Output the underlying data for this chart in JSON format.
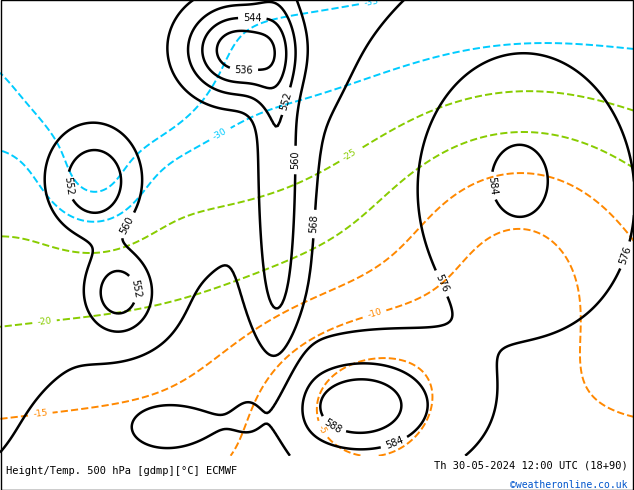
{
  "title_left": "Height/Temp. 500 hPa [gdmp][°C] ECMWF",
  "title_right": "Th 30-05-2024 12:00 UTC (18+90)",
  "credit": "©weatheronline.co.uk",
  "land_green": "#c8e69a",
  "land_gray": "#c8c8c8",
  "ocean_color": "#dcdcdc",
  "height_color": "#000000",
  "temp_orange_color": "#ff8800",
  "temp_cyan_color": "#00ccff",
  "temp_green_color": "#88cc00",
  "figsize": [
    6.34,
    4.9
  ],
  "dpi": 100,
  "extent": [
    -30,
    50,
    30,
    75
  ]
}
